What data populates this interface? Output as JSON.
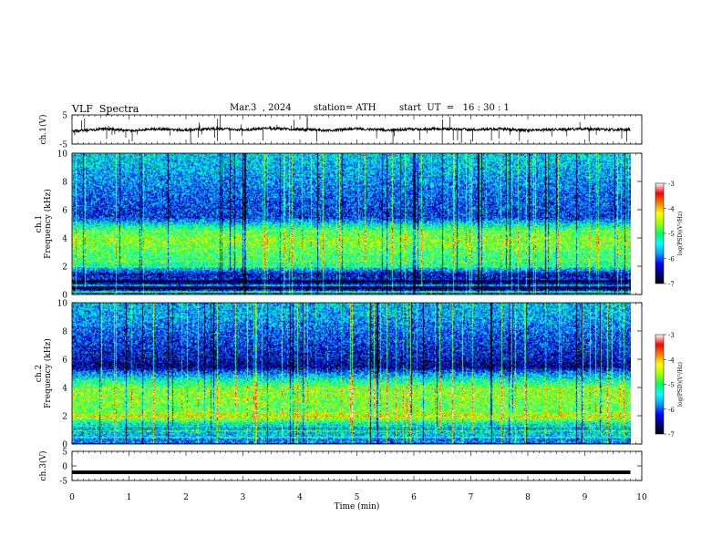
{
  "header": {
    "title": "VLF  Spectra",
    "date": "Mar.3  , 2024",
    "station": "station= ATH",
    "start": "start  UT  =   16 : 30 : 1"
  },
  "chart_data": [
    {
      "type": "line",
      "name": "ch1-waveform",
      "ylabel": "ch.1(V)",
      "ylim": [
        -5,
        5
      ],
      "yticks": [
        5,
        -5
      ],
      "xlim": [
        0,
        10
      ],
      "x": [
        0,
        0.3,
        0.6,
        1.0,
        1.5,
        2.0,
        2.5,
        3.0,
        3.5,
        4.0,
        4.5,
        5.0,
        5.5,
        6.0,
        6.5,
        7.0,
        7.5,
        8.0,
        8.5,
        9.0,
        9.5,
        9.8
      ],
      "y": [
        -0.7,
        -0.3,
        0.2,
        -0.4,
        0.1,
        -0.2,
        0.3,
        -0.1,
        0.4,
        0.0,
        -0.3,
        0.2,
        -0.2,
        0.1,
        0.3,
        -0.1,
        0.2,
        -0.3,
        0.0,
        0.2,
        -0.1,
        0.0
      ]
    },
    {
      "type": "heatmap",
      "name": "ch1-spectrogram",
      "ylabel": "ch.1\nFrequency  (kHz)",
      "ylim": [
        0,
        10
      ],
      "yticks": [
        0,
        2,
        4,
        6,
        8,
        10
      ],
      "xlim": [
        0,
        10
      ],
      "data_extent_min": 9.8,
      "colorbar": {
        "label": "log(PSD)(V²/Hz)",
        "range": [
          -7,
          -3
        ],
        "ticks": [
          -3,
          -4,
          -5,
          -6,
          -7
        ]
      },
      "profile_khz": [
        0,
        0.6,
        1.0,
        1.5,
        2.0,
        2.5,
        3.0,
        3.5,
        4.0,
        4.5,
        5.0,
        5.5,
        6.0,
        7.0,
        8.0,
        9.0,
        10.0
      ],
      "profile_log_psd": [
        -5.8,
        -6.8,
        -6.2,
        -6.4,
        -5.2,
        -5.0,
        -4.9,
        -4.7,
        -4.6,
        -4.9,
        -5.4,
        -6.2,
        -6.1,
        -6.0,
        -5.8,
        -5.6,
        -5.5
      ]
    },
    {
      "type": "heatmap",
      "name": "ch2-spectrogram",
      "ylabel": "ch.2\nFrequency  (kHz)",
      "ylim": [
        0,
        10
      ],
      "yticks": [
        0,
        2,
        4,
        6,
        8,
        10
      ],
      "xlim": [
        0,
        10
      ],
      "data_extent_min": 9.8,
      "colorbar": {
        "label": "log(PSD)(V²/Hz)",
        "range": [
          -7,
          -3
        ],
        "ticks": [
          -3,
          -4,
          -5,
          -6,
          -7
        ]
      },
      "profile_khz": [
        0,
        0.5,
        1.0,
        1.5,
        2.0,
        2.5,
        3.0,
        3.5,
        4.0,
        4.5,
        5.0,
        5.5,
        6.0,
        7.0,
        8.0,
        9.0,
        10.0
      ],
      "profile_log_psd": [
        -5.9,
        -5.6,
        -5.5,
        -5.3,
        -4.3,
        -4.8,
        -4.7,
        -4.6,
        -4.8,
        -5.2,
        -5.8,
        -6.6,
        -6.4,
        -6.2,
        -6.0,
        -5.7,
        -5.6
      ]
    },
    {
      "type": "line",
      "name": "ch3-waveform",
      "ylabel": "ch.3(V)",
      "ylim": [
        -5,
        5
      ],
      "yticks": [
        5,
        0,
        -5
      ],
      "xlim": [
        0,
        10
      ],
      "xlabel": "Time  (min)",
      "xticks": [
        0,
        1,
        2,
        3,
        4,
        5,
        6,
        7,
        8,
        9,
        10
      ],
      "x": [
        0,
        9.8
      ],
      "y": [
        -2.2,
        -2.2
      ]
    }
  ],
  "colors": {
    "colormap": [
      "#000000",
      "#000080",
      "#0000ff",
      "#00a0ff",
      "#00ffff",
      "#00ff60",
      "#a0ff00",
      "#ffff00",
      "#ff8000",
      "#ff0000",
      "#ffffff"
    ],
    "trace": "#000000"
  }
}
